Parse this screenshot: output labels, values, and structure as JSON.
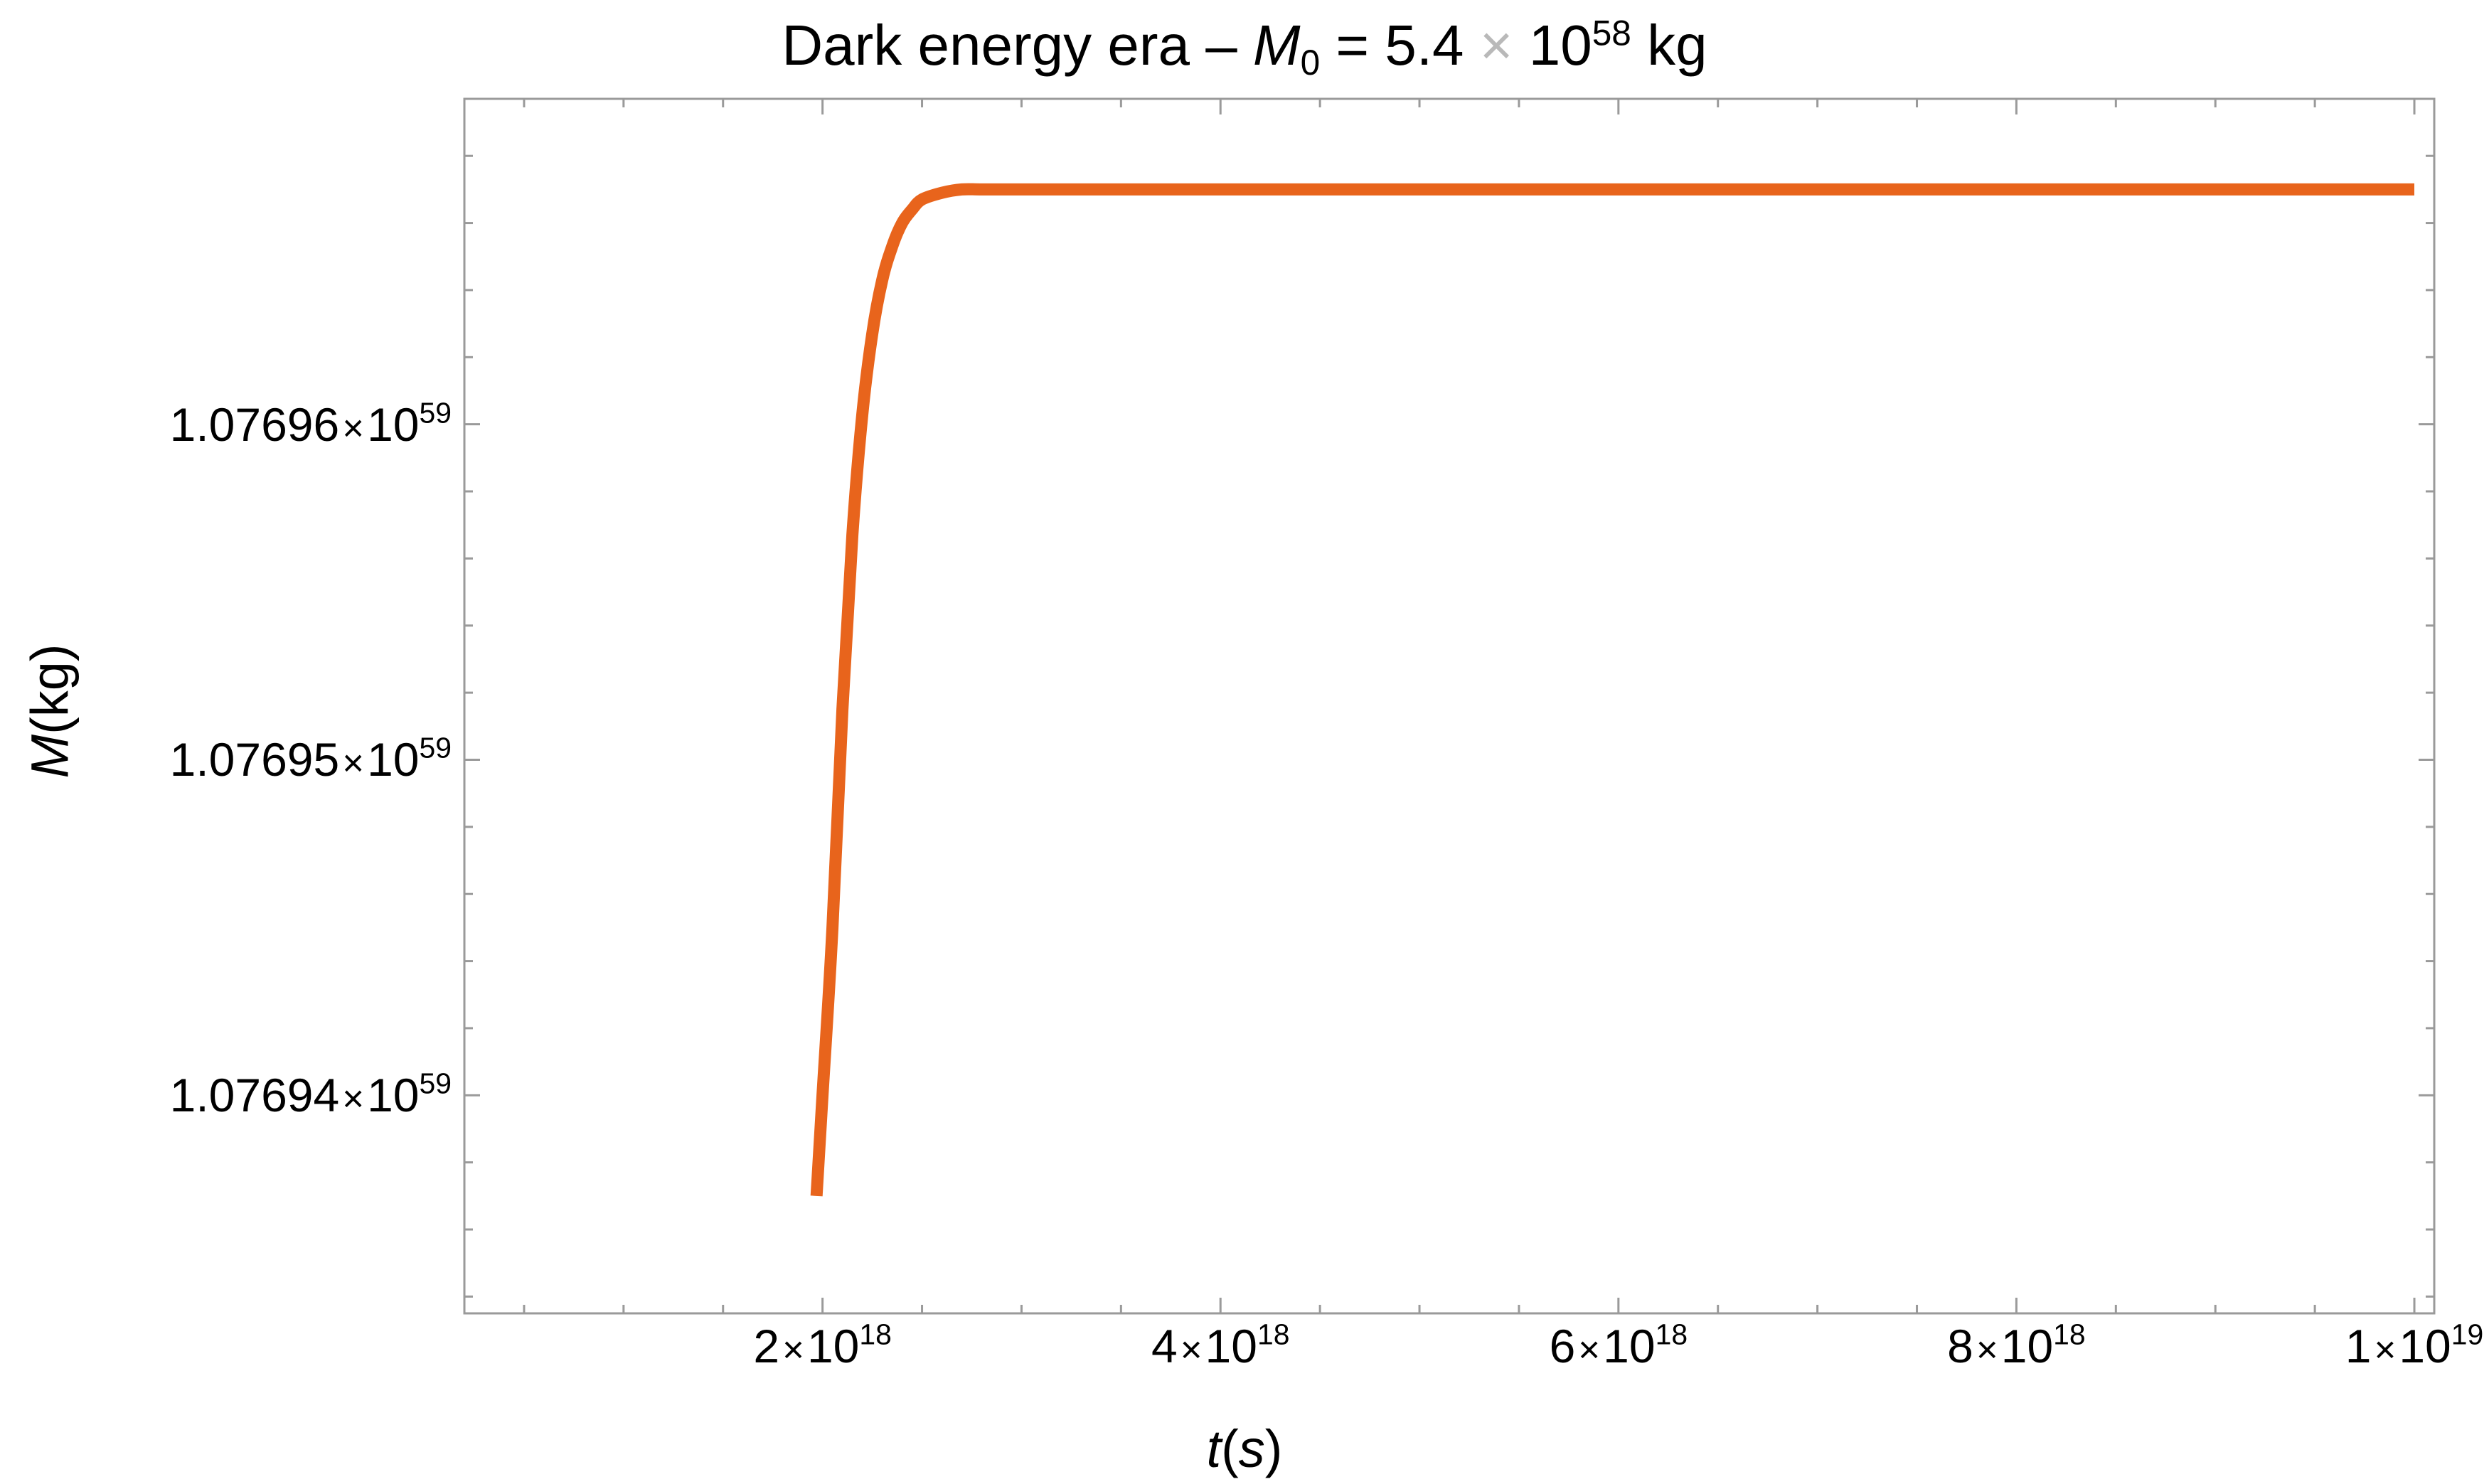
{
  "chart_data": {
    "type": "line",
    "title": "Dark energy era – M₀ = 5.4 × 10⁵⁸ kg",
    "title_parts": {
      "prefix": "Dark energy era – ",
      "var": "M",
      "sub": "0",
      "mid": " = 5.4",
      "times": "×",
      "base": "10",
      "exp": "58",
      "suffix": " kg"
    },
    "xlabel": "t(s)",
    "xlabel_parts": {
      "var1": "t",
      "open": "(",
      "var2": "s",
      "close": ")"
    },
    "ylabel": "M(kg)",
    "ylabel_parts": {
      "var": "M",
      "rest": "(kg)"
    },
    "xlim": [
      2e+17,
      1.01e+19
    ],
    "ylim": [
      1.0769335e+59,
      1.0769697e+59
    ],
    "xticks": [
      {
        "value": 2e+18,
        "mantissa": "2",
        "times": "×",
        "base": "10",
        "exp": "18"
      },
      {
        "value": 4e+18,
        "mantissa": "4",
        "times": "×",
        "base": "10",
        "exp": "18"
      },
      {
        "value": 6e+18,
        "mantissa": "6",
        "times": "×",
        "base": "10",
        "exp": "18"
      },
      {
        "value": 8e+18,
        "mantissa": "8",
        "times": "×",
        "base": "10",
        "exp": "18"
      },
      {
        "value": 1e+19,
        "mantissa": "1",
        "times": "×",
        "base": "10",
        "exp": "19"
      }
    ],
    "yticks": [
      {
        "value": 1.07694e+59,
        "mantissa": "1.07694",
        "times": "×",
        "base": "10",
        "exp": "59"
      },
      {
        "value": 1.07695e+59,
        "mantissa": "1.07695",
        "times": "×",
        "base": "10",
        "exp": "59"
      },
      {
        "value": 1.07696e+59,
        "mantissa": "1.07696",
        "times": "×",
        "base": "10",
        "exp": "59"
      }
    ],
    "grid": false,
    "legend": "none",
    "line_color": "#e8641c",
    "series": [
      {
        "x": [
          1.97e+18,
          2e+18,
          2.05e+18,
          2.1e+18,
          2.15e+18,
          2.2e+18,
          2.25e+18,
          2.3e+18,
          2.35e+18,
          2.4e+18,
          2.45e+18,
          2.5e+18,
          2.6e+18,
          2.7e+18,
          2.8e+18,
          3e+18,
          3.5e+18,
          4e+18,
          5e+18,
          6e+18,
          7e+18,
          8e+18,
          9e+18,
          1e+19
        ],
        "y": [
          1.076937e+59,
          1.07694e+59,
          1.076945e+59,
          1.0769515e+59,
          1.0769567e+59,
          1.0769603e+59,
          1.0769627e+59,
          1.0769643e+59,
          1.0769653e+59,
          1.076966e+59,
          1.0769664e+59,
          1.0769667e+59,
          1.0769669e+59,
          1.076967e+59,
          1.076967e+59,
          1.076967e+59,
          1.076967e+59,
          1.076967e+59,
          1.076967e+59,
          1.076967e+59,
          1.076967e+59,
          1.076967e+59,
          1.076967e+59,
          1.076967e+59
        ]
      }
    ]
  }
}
